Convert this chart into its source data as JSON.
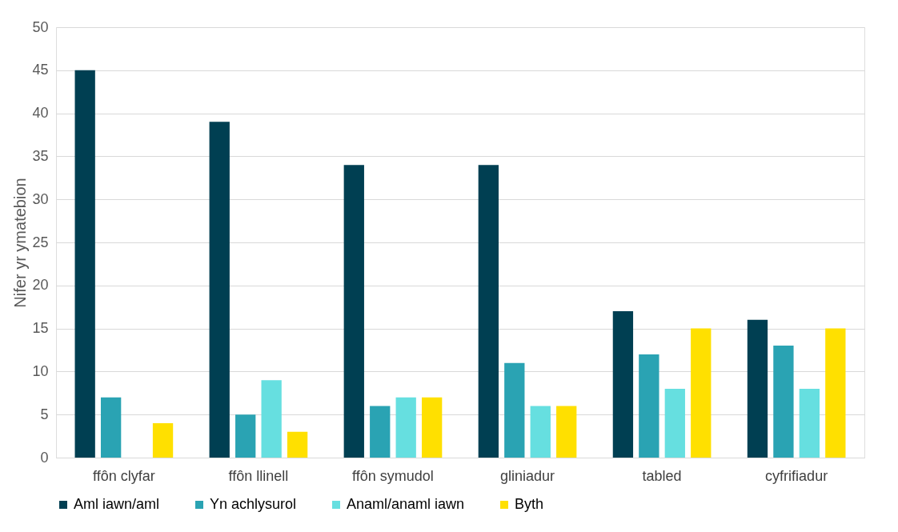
{
  "chart_data": {
    "type": "bar",
    "ylabel": "Nifer yr ymatebion",
    "categories": [
      "ffôn clyfar",
      "ffôn llinell",
      "ffôn symudol",
      "gliniadur",
      "tabled",
      "cyfrifiadur"
    ],
    "series": [
      {
        "name": "Aml iawn/aml",
        "color": "#003f52",
        "values": [
          45,
          39,
          34,
          34,
          17,
          16
        ]
      },
      {
        "name": "Yn achlysurol",
        "color": "#2aa3b3",
        "values": [
          7,
          5,
          6,
          11,
          12,
          13
        ]
      },
      {
        "name": "Anaml/anaml iawn",
        "color": "#66dfe0",
        "values": [
          0,
          9,
          7,
          6,
          8,
          8
        ]
      },
      {
        "name": "Byth",
        "color": "#ffe000",
        "values": [
          4,
          3,
          7,
          6,
          15,
          15
        ]
      }
    ],
    "ylim": [
      0,
      50
    ],
    "yticks": [
      0,
      5,
      10,
      15,
      20,
      25,
      30,
      35,
      40,
      45,
      50
    ],
    "grid": "y",
    "legend": "bottom"
  }
}
